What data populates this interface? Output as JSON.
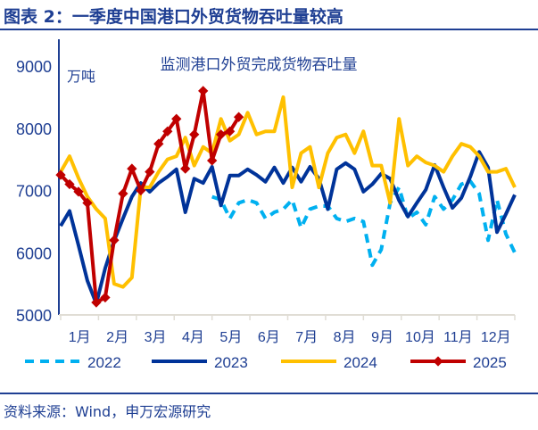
{
  "header": {
    "title": "图表 2：一季度中国港口外贸货物吞吐量较高"
  },
  "footer": {
    "source": "资料来源：Wind，申万宏源研究"
  },
  "chart_data": {
    "type": "line",
    "title": "监测港口外贸完成货物吞吐量",
    "ylabel": "万吨",
    "ylim": [
      5000,
      9000
    ],
    "yticks": [
      "5000",
      "6000",
      "7000",
      "8000",
      "9000"
    ],
    "x": "week 1-52",
    "xtick_labels": [
      "1月",
      "2月",
      "3月",
      "4月",
      "5月",
      "6月",
      "7月",
      "8月",
      "9月",
      "10月",
      "11月",
      "12月"
    ],
    "grid": false,
    "legend": "bottom",
    "series": [
      {
        "name": "2022",
        "color": "#00b0f0",
        "style": "dashed",
        "start_week": 18,
        "values": [
          6900,
          6850,
          6550,
          6800,
          6850,
          6800,
          6550,
          6650,
          6700,
          6850,
          6400,
          6700,
          6750,
          6750,
          6550,
          6500,
          6550,
          6500,
          5800,
          6050,
          6800,
          7050,
          6550,
          6650,
          6450,
          6900,
          6700,
          6850,
          7100,
          7150,
          6950,
          6200,
          6850,
          6300,
          6000
        ]
      },
      {
        "name": "2023",
        "color": "#003399",
        "style": "solid",
        "start_week": 1,
        "values": [
          6430,
          6670,
          6120,
          5550,
          5180,
          5750,
          6190,
          6550,
          6900,
          7120,
          6980,
          7120,
          7220,
          7340,
          6650,
          7190,
          7120,
          7380,
          6760,
          7240,
          7240,
          7340,
          7250,
          7140,
          7370,
          7120,
          7370,
          7140,
          7380,
          7190,
          6700,
          7340,
          7440,
          7340,
          6980,
          7100,
          7270,
          7190,
          6840,
          6580,
          6800,
          7010,
          7410,
          7050,
          6720,
          6880,
          7220,
          7620,
          7370,
          6330,
          6620,
          6930
        ]
      },
      {
        "name": "2024",
        "color": "#ffc000",
        "style": "solid",
        "start_week": 1,
        "values": [
          7300,
          7550,
          7200,
          6900,
          6700,
          6550,
          5500,
          5450,
          5600,
          7050,
          7050,
          7300,
          7500,
          7550,
          7850,
          7400,
          7700,
          7600,
          8150,
          7800,
          7900,
          8250,
          7900,
          7950,
          7950,
          8500,
          7050,
          7600,
          7700,
          7050,
          7600,
          7850,
          7900,
          7600,
          7950,
          7400,
          7400,
          6800,
          8150,
          7400,
          7550,
          7450,
          7400,
          7300,
          7550,
          7750,
          7700,
          7550,
          7300,
          7300,
          7350,
          7050
        ]
      },
      {
        "name": "2025",
        "color": "#c00000",
        "style": "solid-markers",
        "start_week": 1,
        "values": [
          7250,
          7100,
          6980,
          6800,
          5200,
          5280,
          6200,
          6950,
          7350,
          7000,
          7300,
          7750,
          7950,
          8150,
          7350,
          7900,
          8600,
          7480,
          7900,
          7950,
          8180
        ]
      }
    ]
  }
}
